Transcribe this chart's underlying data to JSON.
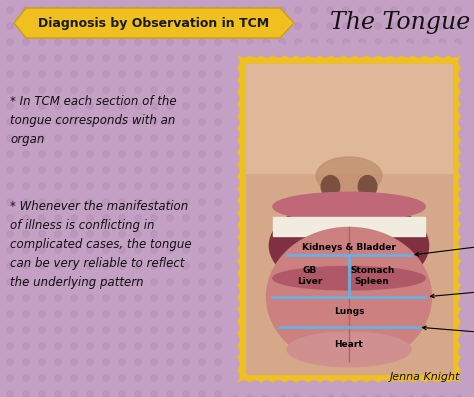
{
  "bg_color": "#c4a0c4",
  "dot_color": "#b890b8",
  "banner_color": "#f0c020",
  "banner_text": "Diagnosis by Observation in TCM",
  "banner_text_color": "#1a1a1a",
  "title_text": "The Tongue",
  "title_color": "#111111",
  "stamp_border_color": "#f0c020",
  "bullet1": "* In TCM each section of the\ntongue corresponds with an\norgan",
  "bullet2": "* Whenever the manifestation\nof illness is conflicting in\ncomplicated cases, the tongue\ncan be very reliable to reflect\nthe underlying pattern",
  "bullet_color": "#111111",
  "blue_line_color": "#6ab0e0",
  "credit_text": "Jenna Knight",
  "credit_color": "#111111",
  "fig_width": 4.74,
  "fig_height": 3.97,
  "skin_color": "#d4a888",
  "skin_dark": "#c09070",
  "nostril_color": "#7a5040",
  "lip_upper": "#c06878",
  "lip_lower": "#b05868",
  "teeth_color": "#f0ede0",
  "mouth_dark": "#803040",
  "tongue_color": "#cc8080",
  "tongue_dark": "#b06060",
  "tongue_tip": "#d09090"
}
